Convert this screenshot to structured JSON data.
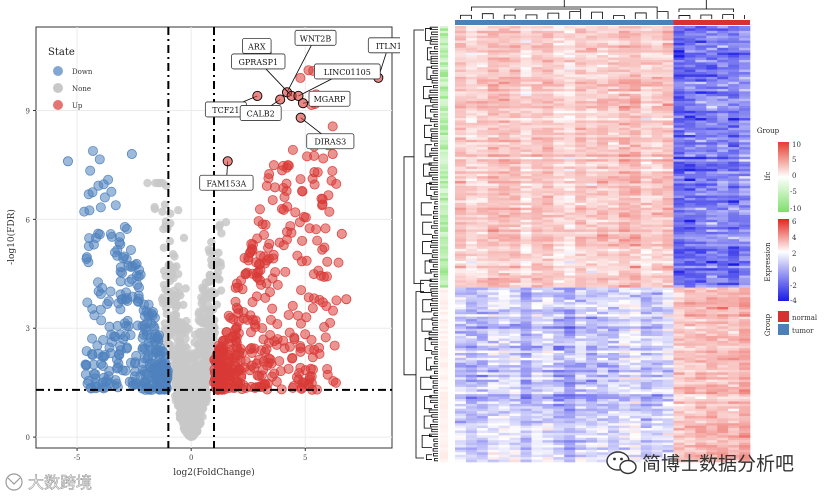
{
  "chart_data": [
    {
      "type": "scatter",
      "title": "",
      "xlabel": "log2(FoldChange)",
      "ylabel": "-log10(FDR)",
      "xlim": [
        -6.8,
        8.8
      ],
      "ylim": [
        -0.3,
        11.3
      ],
      "x_ticks": [
        -5,
        0,
        5
      ],
      "y_ticks": [
        0,
        3,
        6,
        9
      ],
      "grid": true,
      "thresholds": {
        "x": [
          -1,
          1
        ],
        "y": 1.3
      },
      "legend": {
        "title": "State",
        "position": "top-left",
        "entries": [
          {
            "label": "Down",
            "color": "#4f81bd"
          },
          {
            "label": "None",
            "color": "#c8c8c8"
          },
          {
            "label": "Up",
            "color": "#d93a36"
          }
        ]
      },
      "labeled_genes": [
        {
          "gene": "ARX",
          "x": 3.3,
          "y": 10.6
        },
        {
          "gene": "WNT2B",
          "x": 4.2,
          "y": 9.5
        },
        {
          "gene": "ITLN1",
          "x": 8.2,
          "y": 9.9
        },
        {
          "gene": "GPRASP1",
          "x": 4.4,
          "y": 9.4
        },
        {
          "gene": "LINC01105",
          "x": 4.7,
          "y": 9.4
        },
        {
          "gene": "TCF21",
          "x": 2.9,
          "y": 9.4
        },
        {
          "gene": "CALB2",
          "x": 3.9,
          "y": 9.3
        },
        {
          "gene": "MGARP",
          "x": 4.9,
          "y": 9.2
        },
        {
          "gene": "DIRAS3",
          "x": 4.8,
          "y": 8.8
        },
        {
          "gene": "FAM153A",
          "x": 1.6,
          "y": 7.6
        }
      ],
      "series": [
        {
          "name": "Down",
          "color": "#4f81bd",
          "count": 320,
          "x_range": [
            -5.8,
            -1
          ],
          "y_range": [
            1.3,
            8.0
          ]
        },
        {
          "name": "None",
          "color": "#c8c8c8",
          "count": 900,
          "x_range": [
            -1.6,
            1.6
          ],
          "y_range": [
            0,
            7.0
          ]
        },
        {
          "name": "Up",
          "color": "#d93a36",
          "count": 420,
          "x_range": [
            1,
            8.2
          ],
          "y_range": [
            1.3,
            10.6
          ]
        }
      ]
    },
    {
      "type": "heatmap",
      "legends": [
        {
          "title": "lfc",
          "ticks": [
            "10",
            "5",
            "0",
            "-5",
            "-10"
          ],
          "colors": [
            "#e53b2e",
            "#ffffff",
            "#7de06a"
          ]
        },
        {
          "title": "Expression",
          "ticks": [
            "6",
            "4",
            "2",
            "0",
            "-2",
            "-4"
          ],
          "colors": [
            "#e5261c",
            "#ffffff",
            "#1a1ae6"
          ]
        },
        {
          "title": "Group",
          "entries": [
            {
              "label": "normal",
              "color": "#d73232"
            },
            {
              "label": "tumor",
              "color": "#4c80b8"
            }
          ]
        }
      ],
      "column_groups": [
        {
          "group": "tumor",
          "count": 20
        },
        {
          "group": "normal",
          "count": 7
        }
      ],
      "row_blocks": [
        {
          "genes": "up in tumor",
          "fraction": 0.6,
          "tumor_level": 1.3,
          "normal_level": -2.2
        },
        {
          "genes": "down in tumor",
          "fraction": 0.4,
          "tumor_level": -1.0,
          "normal_level": 2.0
        }
      ]
    }
  ],
  "watermarks": {
    "left": "大数跨境",
    "right": "简博士数据分析吧"
  },
  "colors": {
    "down": "#4f81bd",
    "none": "#c8c8c8",
    "up": "#d93a36",
    "panel_border": "#333333",
    "grid": "#ebebeb"
  }
}
